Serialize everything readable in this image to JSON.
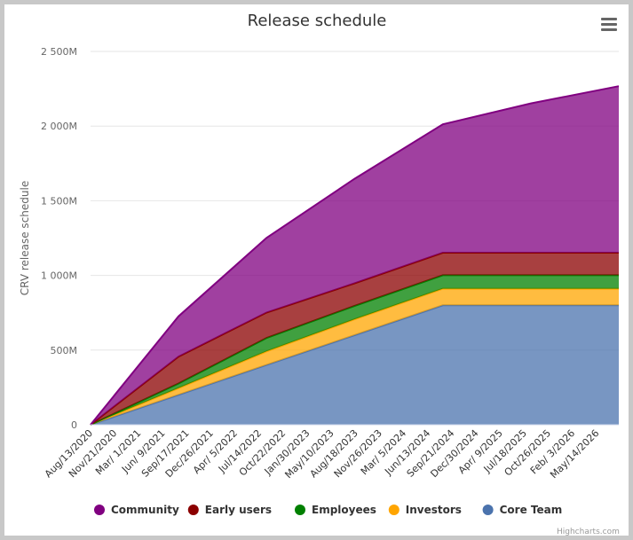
{
  "chart_data": {
    "type": "area",
    "stacking": "normal",
    "title": "Release schedule",
    "ylabel": "CRV release schedule",
    "ylim": [
      0,
      2500
    ],
    "y_tick_labels": [
      "0",
      "500M",
      "1 000M",
      "1 500M",
      "2 000M",
      "2 500M"
    ],
    "y_ticks": [
      0,
      500,
      1000,
      1500,
      2000,
      2500
    ],
    "x_tick_labels": [
      "Aug/13/2020",
      "Nov/21/2020",
      "Mar/ 1/2021",
      "Jun/ 9/2021",
      "Sep/17/2021",
      "Dec/26/2021",
      "Apr/ 5/2022",
      "Jul/14/2022",
      "Oct/22/2022",
      "Jan/30/2023",
      "May/10/2023",
      "Aug/18/2023",
      "Nov/26/2023",
      "Mar/ 5/2024",
      "Jun/13/2024",
      "Sep/21/2024",
      "Dec/30/2024",
      "Apr/ 9/2025",
      "Jul/18/2025",
      "Oct/26/2025",
      "Feb/ 3/2026",
      "May/14/2026"
    ],
    "x": [
      "Aug/13/2020",
      "Aug/13/2021",
      "Aug/13/2022",
      "Aug/13/2023",
      "Aug/13/2024",
      "Aug/13/2025",
      "Aug/13/2026"
    ],
    "legend_position": "bottom",
    "grid": true,
    "series": [
      {
        "name": "Core Team",
        "color": "#4b73ad",
        "values": [
          0,
          200,
          400,
          600,
          800,
          800,
          800
        ]
      },
      {
        "name": "Investors",
        "color": "#ffa500",
        "values": [
          0,
          45,
          91,
          106,
          111,
          111,
          111
        ]
      },
      {
        "name": "Employees",
        "color": "#008000",
        "values": [
          0,
          31,
          90,
          90,
          90,
          90,
          90
        ]
      },
      {
        "name": "Early users",
        "color": "#8b0000",
        "values": [
          0,
          180,
          170,
          151,
          151,
          151,
          151
        ]
      },
      {
        "name": "Community",
        "color": "#800080",
        "values": [
          0,
          270,
          500,
          700,
          860,
          1000,
          1115
        ]
      }
    ],
    "legend_order": [
      "Community",
      "Early users",
      "Employees",
      "Investors",
      "Core Team"
    ]
  },
  "credits": "Highcharts.com",
  "icons": {
    "menu": "hamburger-menu-icon"
  }
}
